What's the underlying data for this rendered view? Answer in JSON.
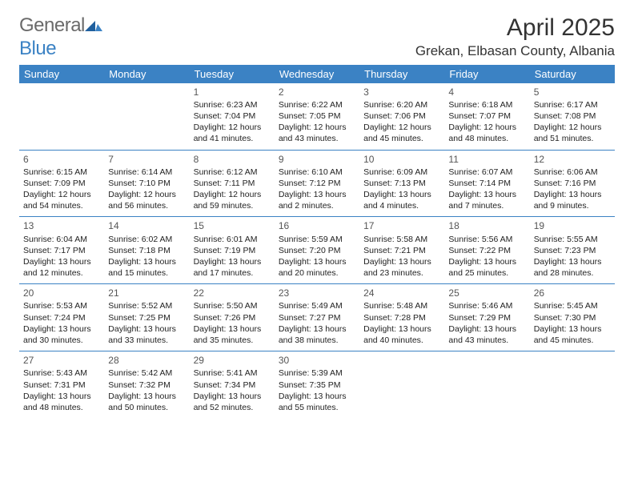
{
  "brand": {
    "general": "General",
    "blue": "Blue"
  },
  "title": "April 2025",
  "location": "Grekan, Elbasan County, Albania",
  "colors": {
    "header_bg": "#3b82c4",
    "header_text": "#ffffff",
    "rule": "#3b82c4",
    "body_text": "#222222",
    "daynum_text": "#555555",
    "title_text": "#333333",
    "logo_gray": "#6a6a6a",
    "logo_blue": "#3b82c4",
    "page_bg": "#ffffff"
  },
  "weekdays": [
    "Sunday",
    "Monday",
    "Tuesday",
    "Wednesday",
    "Thursday",
    "Friday",
    "Saturday"
  ],
  "weeks": [
    [
      null,
      null,
      {
        "n": "1",
        "sr": "6:23 AM",
        "ss": "7:04 PM",
        "dl": "12 hours and 41 minutes."
      },
      {
        "n": "2",
        "sr": "6:22 AM",
        "ss": "7:05 PM",
        "dl": "12 hours and 43 minutes."
      },
      {
        "n": "3",
        "sr": "6:20 AM",
        "ss": "7:06 PM",
        "dl": "12 hours and 45 minutes."
      },
      {
        "n": "4",
        "sr": "6:18 AM",
        "ss": "7:07 PM",
        "dl": "12 hours and 48 minutes."
      },
      {
        "n": "5",
        "sr": "6:17 AM",
        "ss": "7:08 PM",
        "dl": "12 hours and 51 minutes."
      }
    ],
    [
      {
        "n": "6",
        "sr": "6:15 AM",
        "ss": "7:09 PM",
        "dl": "12 hours and 54 minutes."
      },
      {
        "n": "7",
        "sr": "6:14 AM",
        "ss": "7:10 PM",
        "dl": "12 hours and 56 minutes."
      },
      {
        "n": "8",
        "sr": "6:12 AM",
        "ss": "7:11 PM",
        "dl": "12 hours and 59 minutes."
      },
      {
        "n": "9",
        "sr": "6:10 AM",
        "ss": "7:12 PM",
        "dl": "13 hours and 2 minutes."
      },
      {
        "n": "10",
        "sr": "6:09 AM",
        "ss": "7:13 PM",
        "dl": "13 hours and 4 minutes."
      },
      {
        "n": "11",
        "sr": "6:07 AM",
        "ss": "7:14 PM",
        "dl": "13 hours and 7 minutes."
      },
      {
        "n": "12",
        "sr": "6:06 AM",
        "ss": "7:16 PM",
        "dl": "13 hours and 9 minutes."
      }
    ],
    [
      {
        "n": "13",
        "sr": "6:04 AM",
        "ss": "7:17 PM",
        "dl": "13 hours and 12 minutes."
      },
      {
        "n": "14",
        "sr": "6:02 AM",
        "ss": "7:18 PM",
        "dl": "13 hours and 15 minutes."
      },
      {
        "n": "15",
        "sr": "6:01 AM",
        "ss": "7:19 PM",
        "dl": "13 hours and 17 minutes."
      },
      {
        "n": "16",
        "sr": "5:59 AM",
        "ss": "7:20 PM",
        "dl": "13 hours and 20 minutes."
      },
      {
        "n": "17",
        "sr": "5:58 AM",
        "ss": "7:21 PM",
        "dl": "13 hours and 23 minutes."
      },
      {
        "n": "18",
        "sr": "5:56 AM",
        "ss": "7:22 PM",
        "dl": "13 hours and 25 minutes."
      },
      {
        "n": "19",
        "sr": "5:55 AM",
        "ss": "7:23 PM",
        "dl": "13 hours and 28 minutes."
      }
    ],
    [
      {
        "n": "20",
        "sr": "5:53 AM",
        "ss": "7:24 PM",
        "dl": "13 hours and 30 minutes."
      },
      {
        "n": "21",
        "sr": "5:52 AM",
        "ss": "7:25 PM",
        "dl": "13 hours and 33 minutes."
      },
      {
        "n": "22",
        "sr": "5:50 AM",
        "ss": "7:26 PM",
        "dl": "13 hours and 35 minutes."
      },
      {
        "n": "23",
        "sr": "5:49 AM",
        "ss": "7:27 PM",
        "dl": "13 hours and 38 minutes."
      },
      {
        "n": "24",
        "sr": "5:48 AM",
        "ss": "7:28 PM",
        "dl": "13 hours and 40 minutes."
      },
      {
        "n": "25",
        "sr": "5:46 AM",
        "ss": "7:29 PM",
        "dl": "13 hours and 43 minutes."
      },
      {
        "n": "26",
        "sr": "5:45 AM",
        "ss": "7:30 PM",
        "dl": "13 hours and 45 minutes."
      }
    ],
    [
      {
        "n": "27",
        "sr": "5:43 AM",
        "ss": "7:31 PM",
        "dl": "13 hours and 48 minutes."
      },
      {
        "n": "28",
        "sr": "5:42 AM",
        "ss": "7:32 PM",
        "dl": "13 hours and 50 minutes."
      },
      {
        "n": "29",
        "sr": "5:41 AM",
        "ss": "7:34 PM",
        "dl": "13 hours and 52 minutes."
      },
      {
        "n": "30",
        "sr": "5:39 AM",
        "ss": "7:35 PM",
        "dl": "13 hours and 55 minutes."
      },
      null,
      null,
      null
    ]
  ],
  "labels": {
    "sunrise": "Sunrise: ",
    "sunset": "Sunset: ",
    "daylight": "Daylight: "
  }
}
